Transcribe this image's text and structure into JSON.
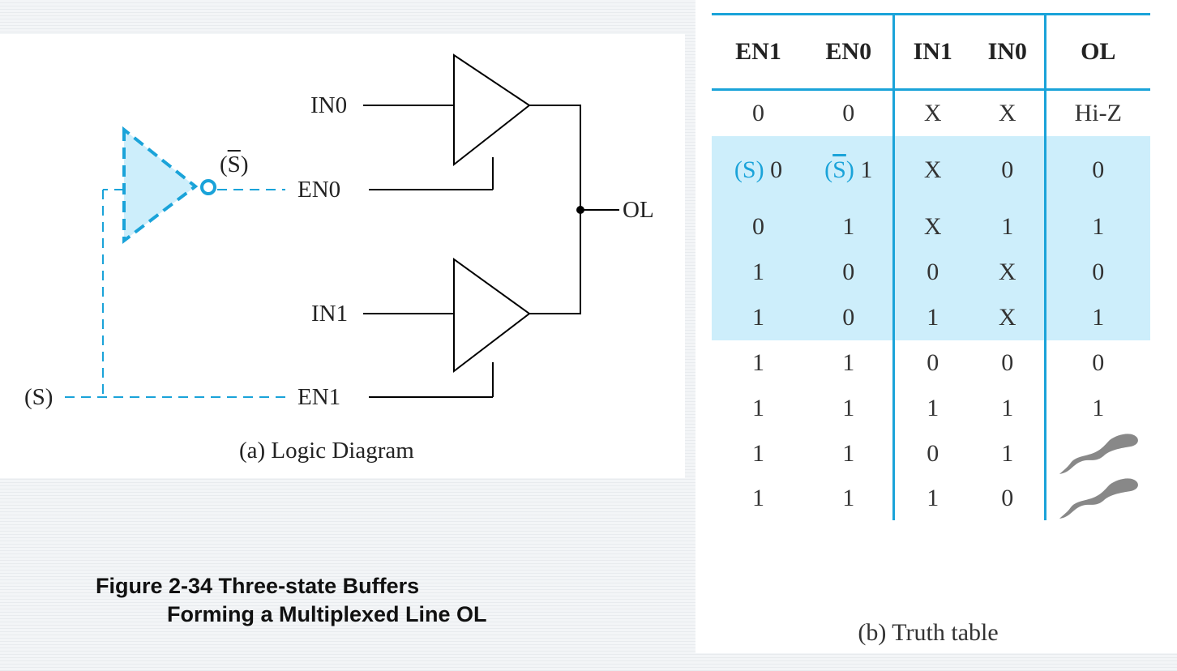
{
  "diagram": {
    "labels": {
      "in0": "IN0",
      "en0": "EN0",
      "in1": "IN1",
      "en1": "EN1",
      "ol": "OL",
      "s_bar": "S",
      "s_input": "(S)"
    },
    "caption": "(a) Logic Diagram",
    "colors": {
      "dashed_inverter": "#1aa3d9",
      "lines": "#000000"
    }
  },
  "figure_caption": {
    "line1": "Figure 2-34 Three-state Buffers",
    "line2": "Forming a Multiplexed Line OL"
  },
  "truth_table": {
    "headers": [
      "EN1",
      "EN0",
      "IN1",
      "IN0",
      "OL"
    ],
    "first_highlight_row": {
      "en1_prefix": "(S)",
      "en1_value": "0",
      "en0_prefix": "S",
      "en0_value": "1",
      "in1": "X",
      "in0": "0",
      "ol": "0"
    },
    "rows": [
      {
        "cells": [
          "0",
          "0",
          "X",
          "X",
          "Hi-Z"
        ],
        "highlight": false
      },
      {
        "cells": [
          "0",
          "1",
          "X",
          "1",
          "1"
        ],
        "highlight": true
      },
      {
        "cells": [
          "1",
          "0",
          "0",
          "X",
          "0"
        ],
        "highlight": true
      },
      {
        "cells": [
          "1",
          "0",
          "1",
          "X",
          "1"
        ],
        "highlight": true
      },
      {
        "cells": [
          "1",
          "1",
          "0",
          "0",
          "0"
        ],
        "highlight": false
      },
      {
        "cells": [
          "1",
          "1",
          "1",
          "1",
          "1"
        ],
        "highlight": false
      },
      {
        "cells": [
          "1",
          "1",
          "0",
          "1",
          ""
        ],
        "highlight": false,
        "ol_icon": "smoke-icon"
      },
      {
        "cells": [
          "1",
          "1",
          "1",
          "0",
          ""
        ],
        "highlight": false,
        "ol_icon": "smoke-icon"
      }
    ],
    "caption": "(b) Truth table",
    "colors": {
      "highlight": "#cdeefb",
      "rules": "#1aa3d9"
    }
  }
}
